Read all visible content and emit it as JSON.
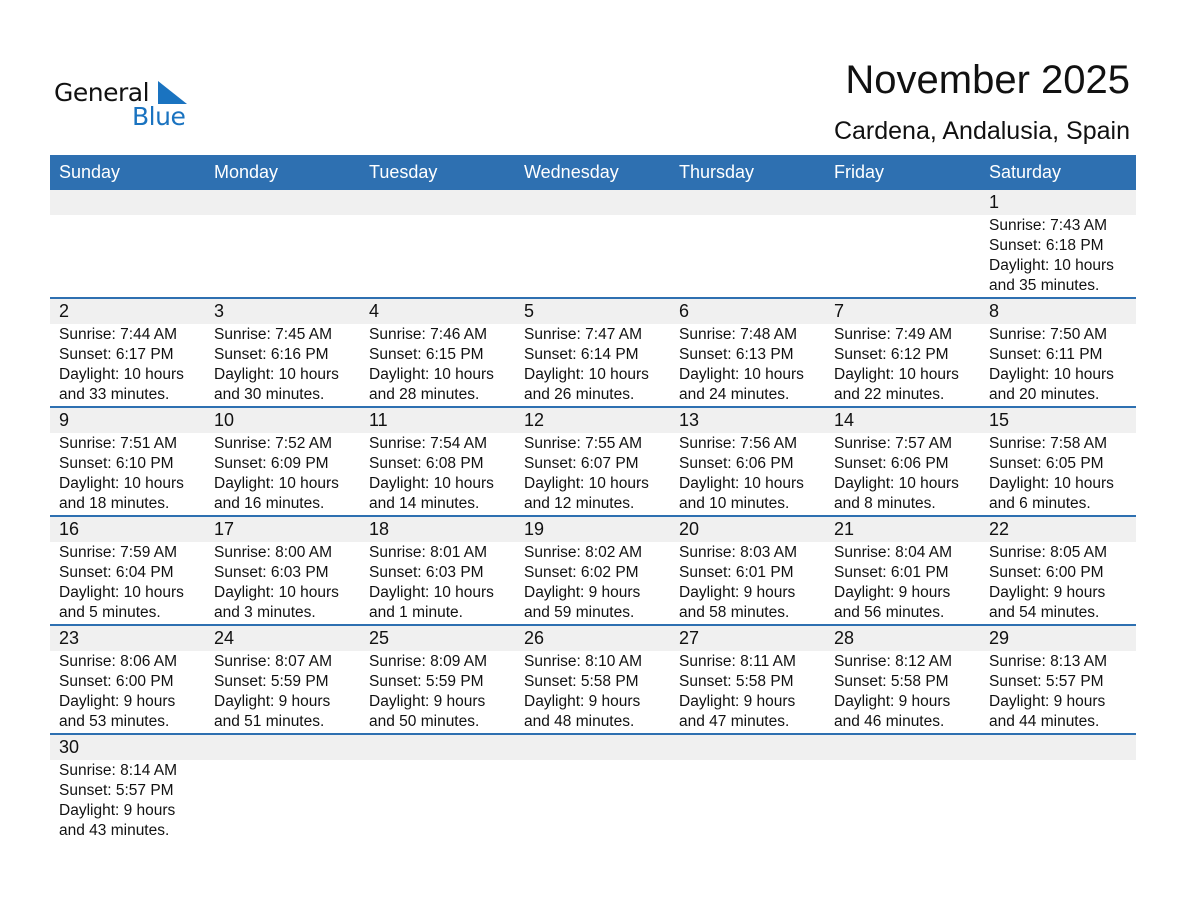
{
  "logo": {
    "word1": "General",
    "word2": "Blue",
    "color": "#1a73c0"
  },
  "title": "November 2025",
  "subtitle": "Cardena, Andalusia, Spain",
  "colors": {
    "header": "#2e70b1",
    "strip": "#f0f0f0"
  },
  "weekdays": [
    "Sunday",
    "Monday",
    "Tuesday",
    "Wednesday",
    "Thursday",
    "Friday",
    "Saturday"
  ],
  "weeks": [
    [
      null,
      null,
      null,
      null,
      null,
      null,
      {
        "day": "1",
        "sunrise": "Sunrise: 7:43 AM",
        "sunset": "Sunset: 6:18 PM",
        "daylight1": "Daylight: 10 hours",
        "daylight2": "and 35 minutes."
      }
    ],
    [
      {
        "day": "2",
        "sunrise": "Sunrise: 7:44 AM",
        "sunset": "Sunset: 6:17 PM",
        "daylight1": "Daylight: 10 hours",
        "daylight2": "and 33 minutes."
      },
      {
        "day": "3",
        "sunrise": "Sunrise: 7:45 AM",
        "sunset": "Sunset: 6:16 PM",
        "daylight1": "Daylight: 10 hours",
        "daylight2": "and 30 minutes."
      },
      {
        "day": "4",
        "sunrise": "Sunrise: 7:46 AM",
        "sunset": "Sunset: 6:15 PM",
        "daylight1": "Daylight: 10 hours",
        "daylight2": "and 28 minutes."
      },
      {
        "day": "5",
        "sunrise": "Sunrise: 7:47 AM",
        "sunset": "Sunset: 6:14 PM",
        "daylight1": "Daylight: 10 hours",
        "daylight2": "and 26 minutes."
      },
      {
        "day": "6",
        "sunrise": "Sunrise: 7:48 AM",
        "sunset": "Sunset: 6:13 PM",
        "daylight1": "Daylight: 10 hours",
        "daylight2": "and 24 minutes."
      },
      {
        "day": "7",
        "sunrise": "Sunrise: 7:49 AM",
        "sunset": "Sunset: 6:12 PM",
        "daylight1": "Daylight: 10 hours",
        "daylight2": "and 22 minutes."
      },
      {
        "day": "8",
        "sunrise": "Sunrise: 7:50 AM",
        "sunset": "Sunset: 6:11 PM",
        "daylight1": "Daylight: 10 hours",
        "daylight2": "and 20 minutes."
      }
    ],
    [
      {
        "day": "9",
        "sunrise": "Sunrise: 7:51 AM",
        "sunset": "Sunset: 6:10 PM",
        "daylight1": "Daylight: 10 hours",
        "daylight2": "and 18 minutes."
      },
      {
        "day": "10",
        "sunrise": "Sunrise: 7:52 AM",
        "sunset": "Sunset: 6:09 PM",
        "daylight1": "Daylight: 10 hours",
        "daylight2": "and 16 minutes."
      },
      {
        "day": "11",
        "sunrise": "Sunrise: 7:54 AM",
        "sunset": "Sunset: 6:08 PM",
        "daylight1": "Daylight: 10 hours",
        "daylight2": "and 14 minutes."
      },
      {
        "day": "12",
        "sunrise": "Sunrise: 7:55 AM",
        "sunset": "Sunset: 6:07 PM",
        "daylight1": "Daylight: 10 hours",
        "daylight2": "and 12 minutes."
      },
      {
        "day": "13",
        "sunrise": "Sunrise: 7:56 AM",
        "sunset": "Sunset: 6:06 PM",
        "daylight1": "Daylight: 10 hours",
        "daylight2": "and 10 minutes."
      },
      {
        "day": "14",
        "sunrise": "Sunrise: 7:57 AM",
        "sunset": "Sunset: 6:06 PM",
        "daylight1": "Daylight: 10 hours",
        "daylight2": "and 8 minutes."
      },
      {
        "day": "15",
        "sunrise": "Sunrise: 7:58 AM",
        "sunset": "Sunset: 6:05 PM",
        "daylight1": "Daylight: 10 hours",
        "daylight2": "and 6 minutes."
      }
    ],
    [
      {
        "day": "16",
        "sunrise": "Sunrise: 7:59 AM",
        "sunset": "Sunset: 6:04 PM",
        "daylight1": "Daylight: 10 hours",
        "daylight2": "and 5 minutes."
      },
      {
        "day": "17",
        "sunrise": "Sunrise: 8:00 AM",
        "sunset": "Sunset: 6:03 PM",
        "daylight1": "Daylight: 10 hours",
        "daylight2": "and 3 minutes."
      },
      {
        "day": "18",
        "sunrise": "Sunrise: 8:01 AM",
        "sunset": "Sunset: 6:03 PM",
        "daylight1": "Daylight: 10 hours",
        "daylight2": "and 1 minute."
      },
      {
        "day": "19",
        "sunrise": "Sunrise: 8:02 AM",
        "sunset": "Sunset: 6:02 PM",
        "daylight1": "Daylight: 9 hours",
        "daylight2": "and 59 minutes."
      },
      {
        "day": "20",
        "sunrise": "Sunrise: 8:03 AM",
        "sunset": "Sunset: 6:01 PM",
        "daylight1": "Daylight: 9 hours",
        "daylight2": "and 58 minutes."
      },
      {
        "day": "21",
        "sunrise": "Sunrise: 8:04 AM",
        "sunset": "Sunset: 6:01 PM",
        "daylight1": "Daylight: 9 hours",
        "daylight2": "and 56 minutes."
      },
      {
        "day": "22",
        "sunrise": "Sunrise: 8:05 AM",
        "sunset": "Sunset: 6:00 PM",
        "daylight1": "Daylight: 9 hours",
        "daylight2": "and 54 minutes."
      }
    ],
    [
      {
        "day": "23",
        "sunrise": "Sunrise: 8:06 AM",
        "sunset": "Sunset: 6:00 PM",
        "daylight1": "Daylight: 9 hours",
        "daylight2": "and 53 minutes."
      },
      {
        "day": "24",
        "sunrise": "Sunrise: 8:07 AM",
        "sunset": "Sunset: 5:59 PM",
        "daylight1": "Daylight: 9 hours",
        "daylight2": "and 51 minutes."
      },
      {
        "day": "25",
        "sunrise": "Sunrise: 8:09 AM",
        "sunset": "Sunset: 5:59 PM",
        "daylight1": "Daylight: 9 hours",
        "daylight2": "and 50 minutes."
      },
      {
        "day": "26",
        "sunrise": "Sunrise: 8:10 AM",
        "sunset": "Sunset: 5:58 PM",
        "daylight1": "Daylight: 9 hours",
        "daylight2": "and 48 minutes."
      },
      {
        "day": "27",
        "sunrise": "Sunrise: 8:11 AM",
        "sunset": "Sunset: 5:58 PM",
        "daylight1": "Daylight: 9 hours",
        "daylight2": "and 47 minutes."
      },
      {
        "day": "28",
        "sunrise": "Sunrise: 8:12 AM",
        "sunset": "Sunset: 5:58 PM",
        "daylight1": "Daylight: 9 hours",
        "daylight2": "and 46 minutes."
      },
      {
        "day": "29",
        "sunrise": "Sunrise: 8:13 AM",
        "sunset": "Sunset: 5:57 PM",
        "daylight1": "Daylight: 9 hours",
        "daylight2": "and 44 minutes."
      }
    ],
    [
      {
        "day": "30",
        "sunrise": "Sunrise: 8:14 AM",
        "sunset": "Sunset: 5:57 PM",
        "daylight1": "Daylight: 9 hours",
        "daylight2": "and 43 minutes."
      },
      null,
      null,
      null,
      null,
      null,
      null
    ]
  ]
}
